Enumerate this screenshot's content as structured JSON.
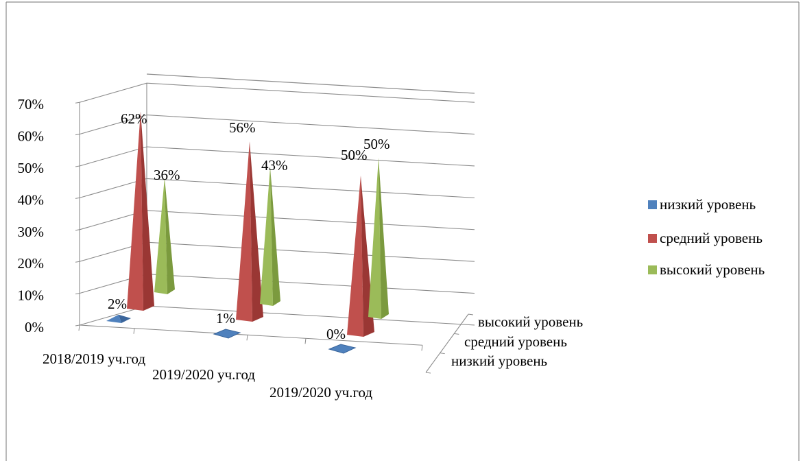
{
  "chart_data": {
    "type": "bar",
    "categories": [
      "2018/2019 уч.год",
      "2019/2020 уч.год",
      "2019/2020 уч.год"
    ],
    "series": [
      {
        "name": "низкий уровень",
        "values": [
          2,
          1,
          0
        ],
        "labels": [
          "2%",
          "1%",
          "0%"
        ],
        "color": "#4f81bd"
      },
      {
        "name": "средний уровень",
        "values": [
          62,
          56,
          50
        ],
        "labels": [
          "62%",
          "56%",
          "50%"
        ],
        "color": "#c0504d"
      },
      {
        "name": "высокий уровень",
        "values": [
          36,
          43,
          50
        ],
        "labels": [
          "36%",
          "43%",
          "50%"
        ],
        "color": "#9bbb59"
      }
    ],
    "y_ticks": [
      "0%",
      "10%",
      "20%",
      "30%",
      "40%",
      "50%",
      "60%",
      "70%"
    ],
    "ylim": [
      0,
      70
    ],
    "depth_labels": [
      "высокий уровень",
      "средний уровень",
      "низкий уровень"
    ],
    "legend_position": "right",
    "grid": true
  }
}
